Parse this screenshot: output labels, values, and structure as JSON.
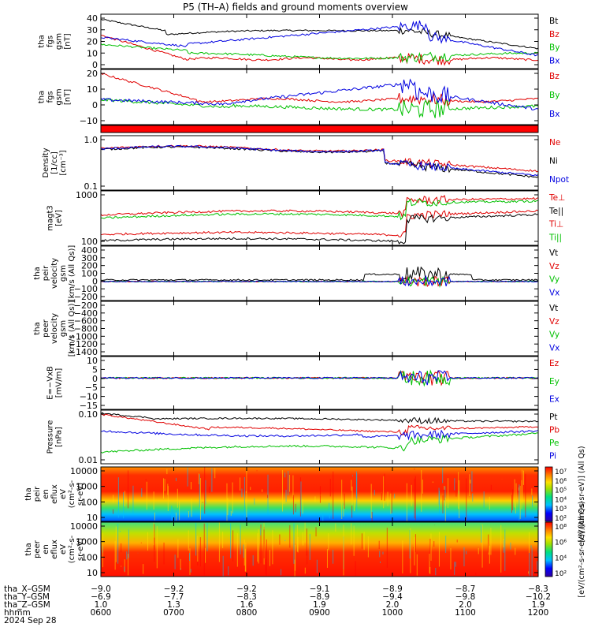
{
  "title": "P5 (TH–A) fields and ground moments overview",
  "chart_data": {
    "type": "line",
    "panels": [
      {
        "id": "fgs_gsm",
        "ylabel": [
          "tha",
          "fgs",
          "gsm",
          "[nT]"
        ],
        "ticks": [
          "40",
          "30",
          "20",
          "10",
          "0"
        ],
        "series": [
          {
            "name": "Bt",
            "color": "#000000"
          },
          {
            "name": "Bz",
            "color": "#e00000"
          },
          {
            "name": "By",
            "color": "#00c000"
          },
          {
            "name": "Bx",
            "color": "#0000e0"
          }
        ],
        "ylim": [
          0,
          45
        ]
      },
      {
        "id": "fgs_gsm_2",
        "ylabel": [
          "tha",
          "fgs",
          "gsm",
          "[nT]"
        ],
        "ticks": [
          "20",
          "10",
          "0",
          "−10"
        ],
        "series": [
          {
            "name": "Bz",
            "color": "#e00000"
          },
          {
            "name": "By",
            "color": "#00c000"
          },
          {
            "name": "Bx",
            "color": "#0000e0"
          }
        ],
        "ylim": [
          -17,
          22
        ]
      },
      {
        "id": "density",
        "ylabel": [
          "Density",
          "[1/cc]",
          "[cm⁻³]"
        ],
        "ticks": [
          "1.0",
          "0.1"
        ],
        "series": [
          {
            "name": "Ne",
            "color": "#e00000"
          },
          {
            "name": "Ni",
            "color": "#000000"
          },
          {
            "name": "Npot",
            "color": "#0000e0"
          }
        ],
        "log": true
      },
      {
        "id": "temperature",
        "ylabel": [
          "magt3",
          "[eV]"
        ],
        "ticks": [
          "1000",
          "100"
        ],
        "series": [
          {
            "name": "Te⊥",
            "color": "#e00000"
          },
          {
            "name": "Te||",
            "color": "#000000"
          },
          {
            "name": "Ti⊥",
            "color": "#e00000"
          },
          {
            "name": "Ti||",
            "color": "#00c000"
          }
        ],
        "log": true
      },
      {
        "id": "peir_velocity",
        "ylabel": [
          "tha",
          "peir",
          "velocity",
          "gsm",
          "[km/s (All Qs)]"
        ],
        "ticks": [
          "400",
          "300",
          "200",
          "100",
          "0",
          "−100",
          "−200"
        ],
        "series": [
          {
            "name": "Vt",
            "color": "#000000"
          },
          {
            "name": "Vz",
            "color": "#e00000"
          },
          {
            "name": "Vy",
            "color": "#00c000"
          },
          {
            "name": "Vx",
            "color": "#0000e0"
          }
        ],
        "ylim": [
          -230,
          440
        ]
      },
      {
        "id": "peer_velocity",
        "ylabel": [
          "tha",
          "peer",
          "velocity",
          "gsm",
          "[km/s (All Qs)]"
        ],
        "ticks": [
          "−200",
          "−400",
          "−600",
          "−800",
          "−1000",
          "−1200",
          "−1400"
        ],
        "series": [
          {
            "name": "Vt",
            "color": "#000000"
          },
          {
            "name": "Vz",
            "color": "#e00000"
          },
          {
            "name": "Vy",
            "color": "#00c000"
          },
          {
            "name": "Vx",
            "color": "#0000e0"
          }
        ]
      },
      {
        "id": "efield",
        "ylabel": [
          "E=−VxB",
          "[mV/m]"
        ],
        "ticks": [
          "10",
          "5",
          "0",
          "−5",
          "−10",
          "−15"
        ],
        "series": [
          {
            "name": "Ez",
            "color": "#e00000"
          },
          {
            "name": "Ey",
            "color": "#00c000"
          },
          {
            "name": "Ex",
            "color": "#0000e0"
          }
        ],
        "ylim": [
          -16,
          11
        ]
      },
      {
        "id": "pressure",
        "ylabel": [
          "Pressure",
          "[nPa]"
        ],
        "ticks": [
          "0.10",
          "0.01"
        ],
        "series": [
          {
            "name": "Pt",
            "color": "#000000"
          },
          {
            "name": "Pb",
            "color": "#e00000"
          },
          {
            "name": "Pe",
            "color": "#00c000"
          },
          {
            "name": "Pi",
            "color": "#0000e0"
          }
        ],
        "log": true
      },
      {
        "id": "peir_spec",
        "ylabel": [
          "tha",
          "peir",
          "en",
          "eflux",
          "eV",
          "(cm²-s-",
          "sr-eV)"
        ],
        "ticks": [
          "10000",
          "1000",
          "100",
          "10"
        ],
        "colorbar": {
          "label": "[eV/(cm²-s-sr-eV)] (All Qs)",
          "ticks": [
            "10⁷",
            "10⁶",
            "10⁵",
            "10⁴",
            "10³",
            "10²"
          ]
        },
        "type": "heatmap"
      },
      {
        "id": "peer_spec",
        "ylabel": [
          "tha",
          "peer",
          "en",
          "eflux",
          "eV",
          "(cm²-s-",
          "sr-eV)"
        ],
        "ticks": [
          "10000",
          "1000",
          "100",
          "10"
        ],
        "colorbar": {
          "label": "[eV/(cm²-s-sr-eV)] (All Qs)",
          "ticks": [
            "10⁸",
            "10⁶",
            "10⁴",
            "10²"
          ]
        },
        "type": "heatmap"
      }
    ],
    "x_rows": [
      {
        "label": "tha_X–GSM",
        "values": [
          "−9.0",
          "−9.2",
          "−9.2",
          "−9.1",
          "−8.9",
          "−8.7",
          "−8.3"
        ]
      },
      {
        "label": "tha_Y–GSM",
        "values": [
          "−6.9",
          "−7.7",
          "−8.3",
          "−8.9",
          "−9.4",
          "−9.8",
          "−10.2"
        ]
      },
      {
        "label": "tha_Z–GSM",
        "values": [
          "1.0",
          "1.3",
          "1.6",
          "1.9",
          "2.0",
          "2.0",
          "1.9"
        ]
      },
      {
        "label": "hhmm",
        "values": [
          "0600",
          "0700",
          "0800",
          "0900",
          "1000",
          "1100",
          "1200"
        ]
      }
    ],
    "date": "2024 Sep 28",
    "x_hours": [
      6,
      7,
      8,
      9,
      10,
      11,
      12
    ]
  }
}
